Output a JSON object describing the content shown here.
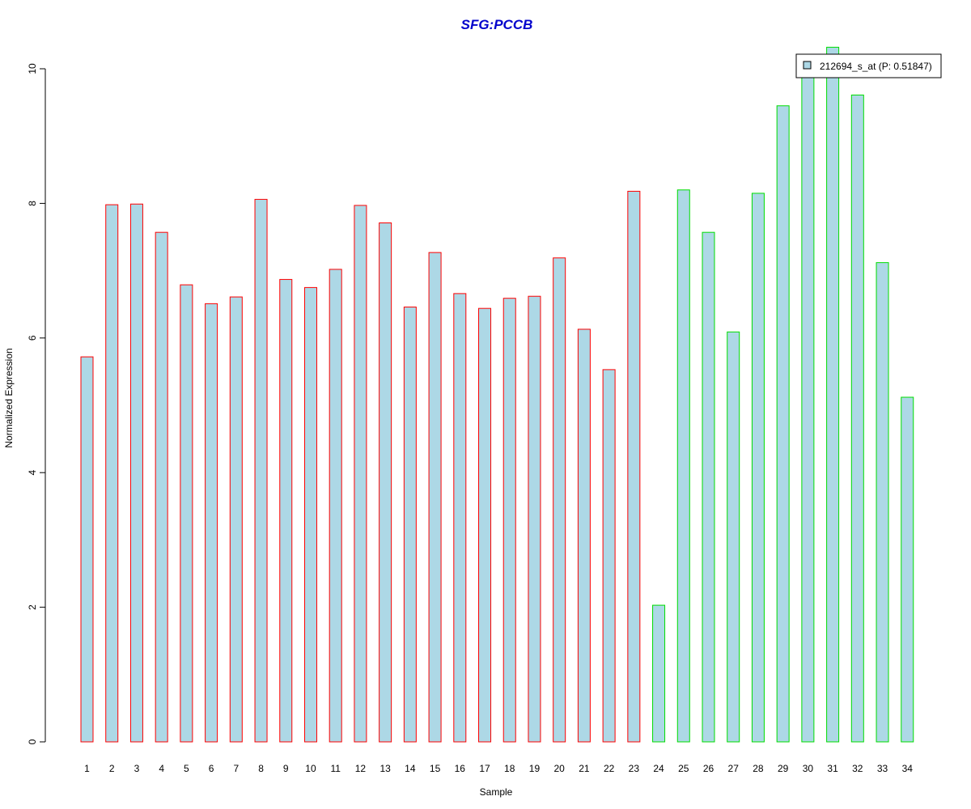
{
  "chart_data": {
    "type": "bar",
    "title": "SFG:PCCB",
    "xlabel": "Sample",
    "ylabel": "Normalized Expression",
    "ylim": [
      0,
      10.3
    ],
    "yticks": [
      0,
      2,
      4,
      6,
      8,
      10
    ],
    "grid": false,
    "legend_position": "top-right",
    "categories": [
      "1",
      "2",
      "3",
      "4",
      "5",
      "6",
      "7",
      "8",
      "9",
      "10",
      "11",
      "12",
      "13",
      "14",
      "15",
      "16",
      "17",
      "18",
      "19",
      "20",
      "21",
      "22",
      "23",
      "24",
      "25",
      "26",
      "27",
      "28",
      "29",
      "30",
      "31",
      "32",
      "33",
      "34"
    ],
    "series": [
      {
        "name": "212694_s_at (P: 0.51847)",
        "values": [
          5.72,
          7.98,
          7.99,
          7.57,
          6.79,
          6.51,
          6.61,
          8.06,
          6.87,
          6.75,
          7.02,
          7.97,
          7.71,
          6.46,
          7.27,
          6.66,
          6.44,
          6.59,
          6.62,
          7.19,
          6.13,
          5.53,
          8.18,
          2.03,
          8.2,
          7.57,
          6.09,
          8.15,
          9.45,
          9.94,
          10.32,
          9.61,
          7.12,
          5.12
        ]
      }
    ],
    "groups": [
      {
        "range": [
          1,
          23
        ],
        "border_color": "#ff0000"
      },
      {
        "range": [
          24,
          34
        ],
        "border_color": "#00dd00"
      }
    ],
    "colors": {
      "bar_fill": "#add8e6",
      "title": "#0000cc",
      "axis": "#000000"
    }
  }
}
